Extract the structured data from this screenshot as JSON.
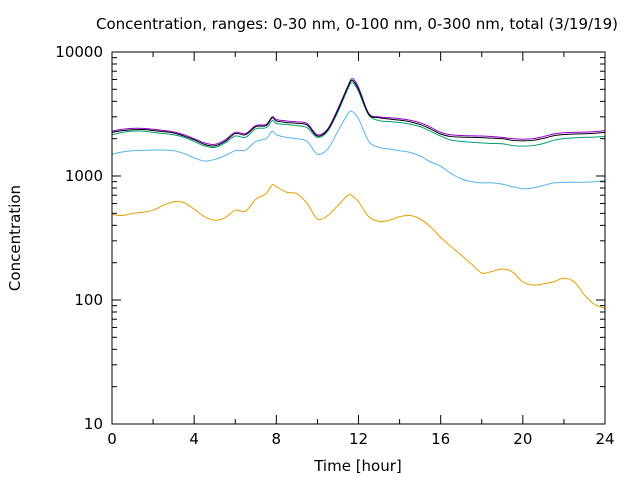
{
  "chart_data": {
    "type": "line",
    "title": "Concentration, ranges: 0-30 nm, 0-100 nm, 0-300 nm, total (3/19/19)",
    "xlabel": "Time [hour]",
    "ylabel": "Concentration",
    "xlim": [
      0,
      24
    ],
    "ylim": [
      10,
      10000
    ],
    "yscale": "log",
    "grid": false,
    "legend": "none",
    "x_ticks": [
      0,
      4,
      8,
      12,
      16,
      20,
      24
    ],
    "x_tick_labels": [
      "0",
      "4",
      "8",
      "12",
      "16",
      "20",
      "24"
    ],
    "y_ticks": [
      10,
      100,
      1000,
      10000
    ],
    "y_tick_labels": [
      "10",
      "100",
      "1000",
      "10000"
    ],
    "x": [
      0,
      0.5,
      1,
      1.5,
      2,
      2.5,
      3,
      3.5,
      4,
      4.5,
      5,
      5.5,
      6,
      6.5,
      7,
      7.5,
      7.8,
      8,
      8.5,
      9,
      9.5,
      10,
      10.5,
      11,
      11.5,
      11.7,
      12,
      12.5,
      13,
      13.5,
      14,
      14.5,
      15,
      15.5,
      16,
      16.5,
      17,
      17.5,
      18,
      18.5,
      19,
      19.5,
      20,
      20.5,
      21,
      21.5,
      22,
      22.5,
      23,
      23.5,
      24
    ],
    "series": [
      {
        "color": "#e69f00",
        "values": [
          490,
          480,
          500,
          510,
          530,
          580,
          620,
          610,
          540,
          470,
          440,
          460,
          530,
          520,
          650,
          720,
          850,
          820,
          740,
          720,
          600,
          450,
          480,
          580,
          700,
          690,
          620,
          470,
          430,
          440,
          470,
          480,
          450,
          390,
          320,
          270,
          230,
          195,
          165,
          170,
          178,
          168,
          140,
          132,
          135,
          140,
          150,
          140,
          110,
          92,
          86
        ]
      },
      {
        "color": "#56b4e9",
        "values": [
          1500,
          1560,
          1600,
          1610,
          1620,
          1620,
          1600,
          1520,
          1400,
          1320,
          1360,
          1460,
          1600,
          1620,
          1900,
          2000,
          2300,
          2150,
          2050,
          2000,
          1900,
          1500,
          1650,
          2300,
          3200,
          3300,
          2900,
          1900,
          1700,
          1650,
          1600,
          1550,
          1450,
          1300,
          1200,
          1050,
          950,
          900,
          880,
          880,
          860,
          820,
          790,
          800,
          840,
          880,
          890,
          890,
          890,
          900,
          920
        ]
      },
      {
        "color": "#009e73",
        "values": [
          2150,
          2250,
          2300,
          2300,
          2250,
          2200,
          2150,
          2050,
          1900,
          1750,
          1700,
          1850,
          2100,
          2050,
          2400,
          2450,
          2800,
          2650,
          2600,
          2550,
          2450,
          2050,
          2300,
          3300,
          5100,
          5700,
          4800,
          3100,
          2800,
          2750,
          2700,
          2620,
          2500,
          2300,
          2100,
          1950,
          1900,
          1870,
          1850,
          1830,
          1820,
          1760,
          1740,
          1760,
          1830,
          1940,
          2000,
          2030,
          2050,
          2060,
          2080
        ]
      },
      {
        "color": "#9400d3",
        "values": [
          2300,
          2380,
          2420,
          2420,
          2380,
          2330,
          2270,
          2150,
          2000,
          1850,
          1800,
          1950,
          2250,
          2200,
          2550,
          2600,
          3000,
          2850,
          2780,
          2730,
          2650,
          2150,
          2400,
          3500,
          5400,
          6100,
          5200,
          3200,
          3000,
          2950,
          2900,
          2820,
          2680,
          2480,
          2250,
          2150,
          2120,
          2110,
          2100,
          2080,
          2050,
          2000,
          1980,
          2000,
          2080,
          2180,
          2230,
          2250,
          2260,
          2280,
          2320
        ]
      },
      {
        "color": "#000000",
        "values": [
          2250,
          2320,
          2360,
          2370,
          2330,
          2280,
          2220,
          2100,
          1960,
          1800,
          1750,
          1900,
          2200,
          2150,
          2500,
          2550,
          2950,
          2780,
          2700,
          2660,
          2580,
          2100,
          2350,
          3400,
          5300,
          5900,
          5000,
          3150,
          2950,
          2880,
          2820,
          2740,
          2600,
          2400,
          2180,
          2080,
          2060,
          2050,
          2040,
          2020,
          2000,
          1940,
          1920,
          1940,
          2010,
          2110,
          2160,
          2180,
          2190,
          2210,
          2250
        ]
      }
    ]
  }
}
